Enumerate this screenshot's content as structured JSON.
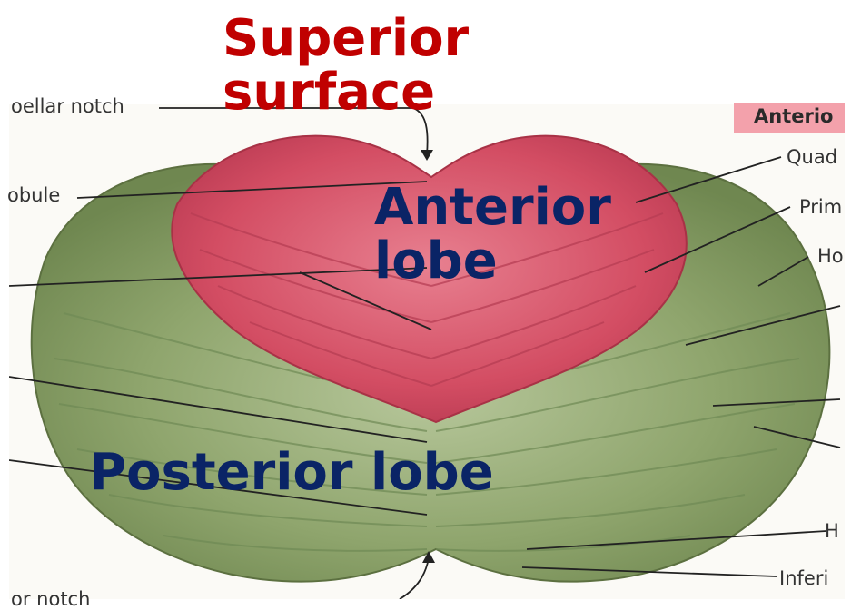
{
  "title": "Superior\nsurface",
  "lobe_labels": {
    "anterior": "Anterior\nlobe",
    "posterior": "Posterior lobe"
  },
  "legend": {
    "text": "Anterio",
    "color": "#f3a1ab"
  },
  "figure_labels": {
    "top_left": "oellar notch",
    "left_upper": "obule",
    "bottom_left": "or notch",
    "right_quad": "Quad",
    "right_prim": "Prim",
    "right_ho": "Ho",
    "right_h": "H",
    "right_inferi": "Inferi"
  },
  "colors": {
    "title": "#c00000",
    "lobe_text": "#0a2466",
    "anterior_lobe": "#d9556b",
    "posterior_lobe": "#8ea56a"
  }
}
